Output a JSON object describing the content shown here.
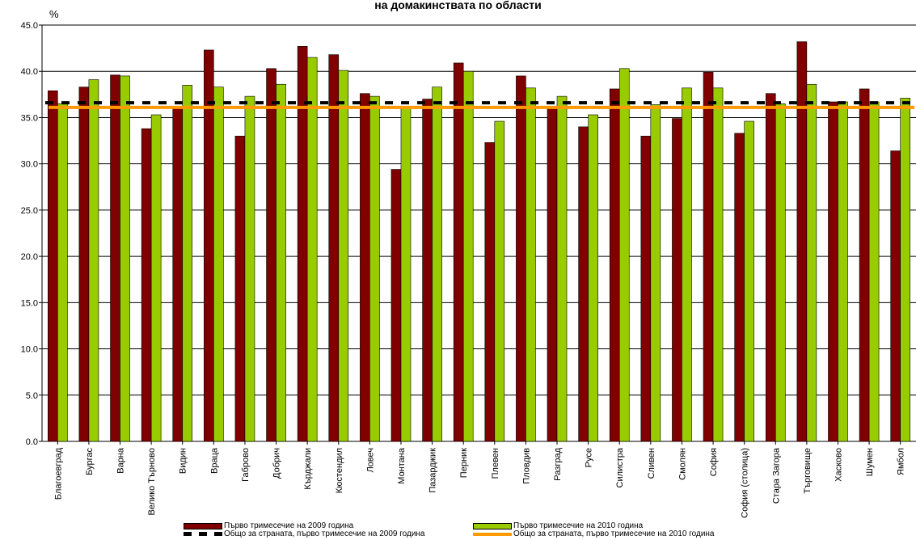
{
  "chart_data": {
    "type": "bar",
    "title": "на домакинствата по области",
    "ylabel": "%",
    "ylim": [
      0,
      45
    ],
    "yticks": [
      "0.0",
      "5.0",
      "10.0",
      "15.0",
      "20.0",
      "25.0",
      "30.0",
      "35.0",
      "40.0",
      "45.0"
    ],
    "grid": true,
    "legend_position": "bottom",
    "categories": [
      "Благоевград",
      "Бургас",
      "Варна",
      "Велико Търново",
      "Видин",
      "Враца",
      "Габрово",
      "Добрич",
      "Кърджали",
      "Кюстендил",
      "Ловеч",
      "Монтана",
      "Пазарджик",
      "Перник",
      "Плевен",
      "Пловдив",
      "Разград",
      "Русе",
      "Силистра",
      "Сливен",
      "Смолян",
      "София",
      "София (столица)",
      "Стара Загора",
      "Търговище",
      "Хасково",
      "Шумен",
      "Ямбол"
    ],
    "series": [
      {
        "name": "Първо тримесечие на 2009 година",
        "color": "#800000",
        "values": [
          37.9,
          38.3,
          39.6,
          33.8,
          36.1,
          42.3,
          33.0,
          40.3,
          42.7,
          41.8,
          37.6,
          29.4,
          37.0,
          40.9,
          32.3,
          39.5,
          36.1,
          34.0,
          38.1,
          33.0,
          34.9,
          39.9,
          33.3,
          37.6,
          43.2,
          36.7,
          38.1,
          31.4
        ]
      },
      {
        "name": "Първо тримесечие на 2010 година",
        "color": "#99cc00",
        "values": [
          36.5,
          39.1,
          39.5,
          35.3,
          38.5,
          38.3,
          37.3,
          38.6,
          41.5,
          40.1,
          37.3,
          36.0,
          38.3,
          40.0,
          34.6,
          38.2,
          37.3,
          35.3,
          40.3,
          36.4,
          38.2,
          38.2,
          34.6,
          36.5,
          38.6,
          36.7,
          36.7,
          37.1
        ]
      }
    ],
    "reference_lines": [
      {
        "name": "Общо за страната, първо тримесечие на 2009 година",
        "value": 36.6,
        "color": "#000000",
        "style": "dashed"
      },
      {
        "name": "Общо за страната, първо тримесечие на 2010 година",
        "value": 36.1,
        "color": "#ff9900",
        "style": "solid"
      }
    ]
  }
}
